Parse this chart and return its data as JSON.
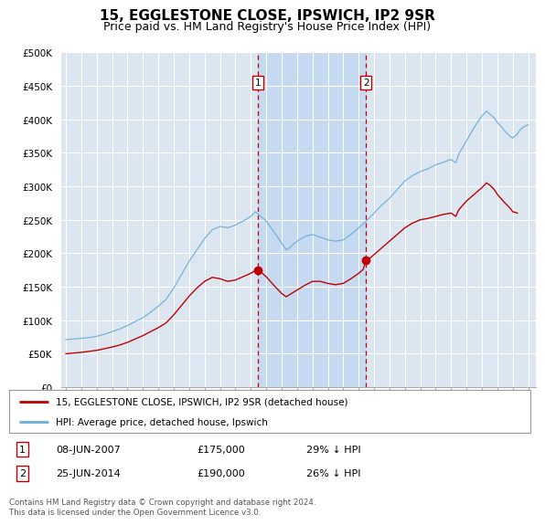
{
  "title": "15, EGGLESTONE CLOSE, IPSWICH, IP2 9SR",
  "subtitle": "Price paid vs. HM Land Registry's House Price Index (HPI)",
  "ylim": [
    0,
    500000
  ],
  "yticks": [
    0,
    50000,
    100000,
    150000,
    200000,
    250000,
    300000,
    350000,
    400000,
    450000,
    500000
  ],
  "ytick_labels": [
    "£0",
    "£50K",
    "£100K",
    "£150K",
    "£200K",
    "£250K",
    "£300K",
    "£350K",
    "£400K",
    "£450K",
    "£500K"
  ],
  "xlim_start": 1994.7,
  "xlim_end": 2025.5,
  "hpi_color": "#6baed6",
  "price_color": "#c00000",
  "sale1_x": 2007.44,
  "sale1_y": 175000,
  "sale1_label": "1",
  "sale2_x": 2014.48,
  "sale2_y": 190000,
  "sale2_label": "2",
  "legend_line1": "15, EGGLESTONE CLOSE, IPSWICH, IP2 9SR (detached house)",
  "legend_line2": "HPI: Average price, detached house, Ipswich",
  "table_row1": [
    "1",
    "08-JUN-2007",
    "£175,000",
    "29% ↓ HPI"
  ],
  "table_row2": [
    "2",
    "25-JUN-2014",
    "£190,000",
    "26% ↓ HPI"
  ],
  "footnote": "Contains HM Land Registry data © Crown copyright and database right 2024.\nThis data is licensed under the Open Government Licence v3.0.",
  "plot_bg_color": "#dce6f1",
  "shade_color": "#c5d9f1",
  "grid_color": "#ffffff",
  "title_fontsize": 11,
  "subtitle_fontsize": 9,
  "tick_fontsize": 7.5
}
